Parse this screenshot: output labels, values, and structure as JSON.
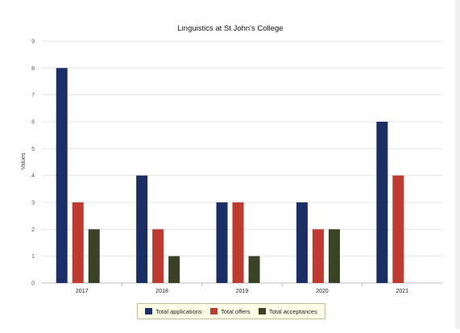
{
  "chart_data": {
    "type": "bar",
    "title": "Linguistics at St John's College",
    "xlabel": "",
    "ylabel": "Values",
    "ylim": [
      0,
      9
    ],
    "yticks": [
      "0",
      "1",
      "2",
      "3",
      "4",
      "5",
      "6",
      "7",
      "8",
      "9"
    ],
    "categories": [
      "2017",
      "2018",
      "2019",
      "2020",
      "2021"
    ],
    "series": [
      {
        "name": "Total applications",
        "color": "#1a2f66",
        "values": [
          8,
          4,
          3,
          3,
          6
        ]
      },
      {
        "name": "Total offers",
        "color": "#bf3a2f",
        "values": [
          3,
          2,
          3,
          2,
          4
        ]
      },
      {
        "name": "Total acceptances",
        "color": "#394224",
        "values": [
          2,
          1,
          1,
          2,
          0
        ]
      }
    ],
    "grid": true,
    "legend_position": "bottom"
  }
}
